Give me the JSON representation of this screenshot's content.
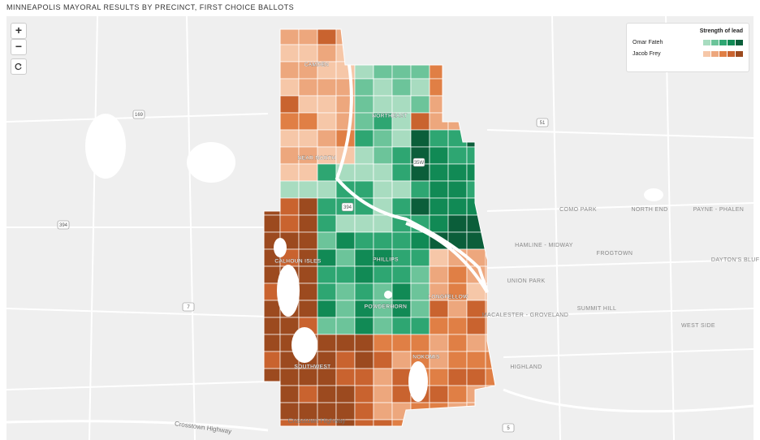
{
  "title": "MINNEAPOLIS MAYORAL RESULTS BY PRECINCT, FIRST CHOICE BALLOTS",
  "controls": {
    "zoom_in": "+",
    "zoom_out": "−"
  },
  "legend": {
    "title": "Strength of lead",
    "entries": [
      {
        "name": "Omar Fateh",
        "colors": [
          "#a8dcc0",
          "#6cc49a",
          "#2ea672",
          "#118a55",
          "#0b5e3a"
        ]
      },
      {
        "name": "Jacob Frey",
        "colors": [
          "#f6c7a8",
          "#eda77d",
          "#e07f45",
          "#c9632f",
          "#9c4a1f"
        ]
      }
    ]
  },
  "labels": [
    {
      "text": "CAMDEN"
    },
    {
      "text": "NORTHEAST"
    },
    {
      "text": "NEAR NORTH"
    },
    {
      "text": "CALHOUN ISLES"
    },
    {
      "text": "PHILLIPS"
    },
    {
      "text": "POWDERHORN"
    },
    {
      "text": "LONGFELLOW"
    },
    {
      "text": "SOUTHWEST"
    },
    {
      "text": "NOKOMIS"
    },
    {
      "text": "COMO PARK"
    },
    {
      "text": "NORTH END"
    },
    {
      "text": "PAYNE - PHALEN"
    },
    {
      "text": "HAMLINE - MIDWAY"
    },
    {
      "text": "FROGTOWN"
    },
    {
      "text": "DAYTON'S BLUFF"
    },
    {
      "text": "UNION PARK"
    },
    {
      "text": "MACALESTER - GROVELAND"
    },
    {
      "text": "SUMMIT HILL"
    },
    {
      "text": "WEST SIDE"
    },
    {
      "text": "HIGHLAND"
    },
    {
      "text": "Crosstown Highway"
    },
    {
      "text": "Crosstown Highway"
    }
  ],
  "shields": [
    {
      "text": "169"
    },
    {
      "text": "394"
    },
    {
      "text": "394"
    },
    {
      "text": "35W"
    },
    {
      "text": "51"
    },
    {
      "text": "7"
    },
    {
      "text": "5"
    }
  ]
}
